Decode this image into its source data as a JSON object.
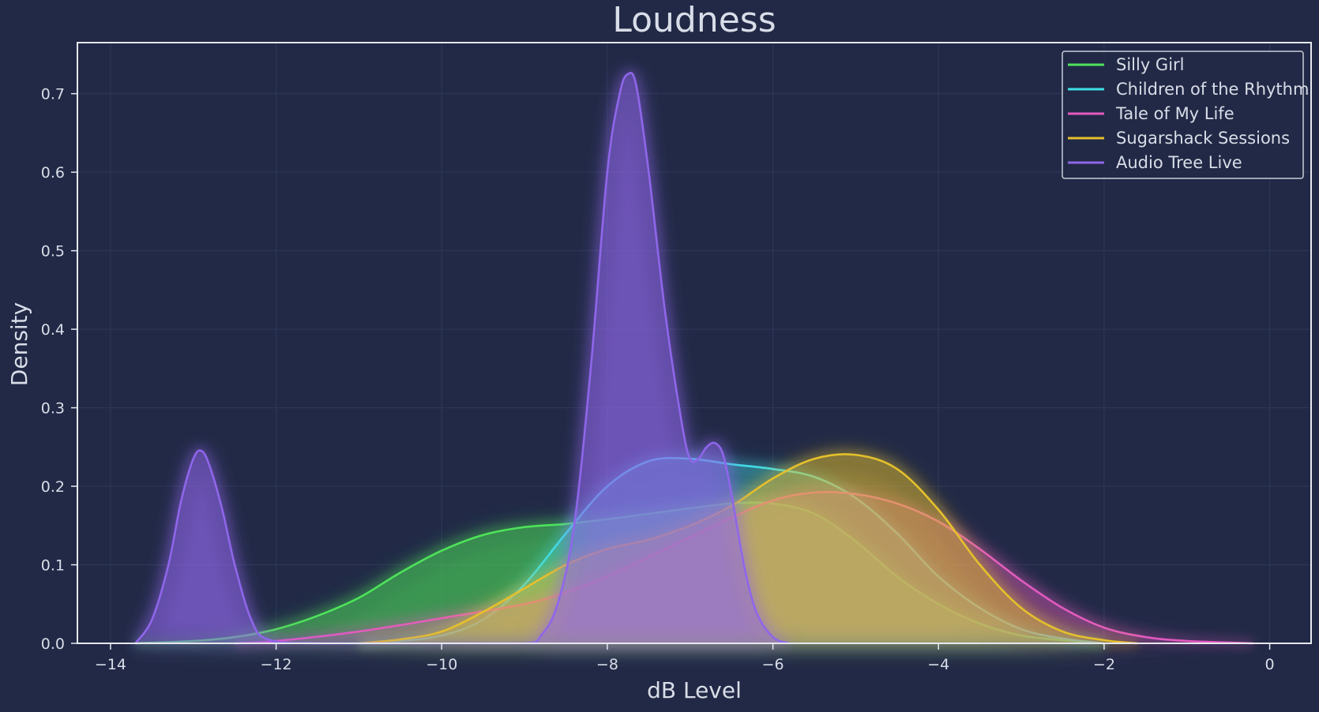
{
  "chart_data": {
    "type": "area",
    "title": "Loudness",
    "xlabel": "dB Level",
    "ylabel": "Density",
    "xlim": [
      -14.4,
      0.5
    ],
    "ylim": [
      0,
      0.765
    ],
    "xticks": [
      -14,
      -12,
      -10,
      -8,
      -6,
      -4,
      -2,
      0
    ],
    "xtick_labels": [
      "−14",
      "−12",
      "−10",
      "−8",
      "−6",
      "−4",
      "−2",
      "0"
    ],
    "yticks": [
      0.0,
      0.1,
      0.2,
      0.3,
      0.4,
      0.5,
      0.6,
      0.7
    ],
    "ytick_labels": [
      "0.0",
      "0.1",
      "0.2",
      "0.3",
      "0.4",
      "0.5",
      "0.6",
      "0.7"
    ],
    "grid": true,
    "legend_position": "top-right",
    "series": [
      {
        "name": "Silly Girl",
        "color": "#4ee35a",
        "fill_opacity": 0.45,
        "x": [
          -13.7,
          -13,
          -12.5,
          -12,
          -11.5,
          -11,
          -10.5,
          -10,
          -9.5,
          -9,
          -8.5,
          -8,
          -7.5,
          -7,
          -6.5,
          -6,
          -5.5,
          -5,
          -4.5,
          -4,
          -3.5,
          -3,
          -2.5,
          -2
        ],
        "y": [
          0.0,
          0.003,
          0.008,
          0.018,
          0.035,
          0.058,
          0.09,
          0.118,
          0.138,
          0.148,
          0.152,
          0.158,
          0.165,
          0.172,
          0.178,
          0.178,
          0.165,
          0.13,
          0.085,
          0.05,
          0.025,
          0.01,
          0.004,
          0.0
        ]
      },
      {
        "name": "Children of the Rhythm",
        "color": "#3fdde6",
        "fill_opacity": 0.3,
        "x": [
          -11,
          -10.5,
          -10,
          -9.5,
          -9,
          -8.5,
          -8,
          -7.5,
          -7,
          -6.5,
          -6,
          -5.5,
          -5,
          -4.5,
          -4,
          -3.5,
          -3,
          -2.5,
          -2
        ],
        "y": [
          0.0,
          0.003,
          0.01,
          0.03,
          0.075,
          0.14,
          0.2,
          0.232,
          0.235,
          0.228,
          0.222,
          0.212,
          0.185,
          0.14,
          0.085,
          0.045,
          0.018,
          0.006,
          0.0
        ]
      },
      {
        "name": "Tale of My Life",
        "color": "#e25ac0",
        "fill_opacity": 0.32,
        "x": [
          -12.5,
          -12,
          -11,
          -10,
          -9,
          -8.5,
          -8,
          -7.5,
          -7,
          -6.5,
          -6,
          -5.5,
          -5,
          -4.5,
          -4,
          -3.5,
          -3,
          -2.5,
          -2,
          -1.5,
          -1,
          -0.2
        ],
        "y": [
          0.0,
          0.003,
          0.015,
          0.032,
          0.05,
          0.065,
          0.085,
          0.11,
          0.135,
          0.16,
          0.182,
          0.192,
          0.19,
          0.178,
          0.155,
          0.12,
          0.08,
          0.045,
          0.02,
          0.008,
          0.003,
          0.0
        ]
      },
      {
        "name": "Sugarshack Sessions",
        "color": "#e5c02d",
        "fill_opacity": 0.42,
        "x": [
          -11,
          -10.5,
          -10,
          -9.5,
          -9,
          -8.5,
          -8,
          -7.5,
          -7,
          -6.5,
          -6,
          -5.5,
          -5,
          -4.5,
          -4,
          -3.5,
          -3,
          -2.5,
          -2,
          -1.6
        ],
        "y": [
          0.0,
          0.005,
          0.015,
          0.04,
          0.07,
          0.1,
          0.12,
          0.132,
          0.15,
          0.175,
          0.21,
          0.235,
          0.24,
          0.222,
          0.17,
          0.1,
          0.045,
          0.015,
          0.004,
          0.0
        ]
      },
      {
        "name": "Audio Tree Live",
        "color": "#8f66ea",
        "fill_opacity": 0.55,
        "x": [
          -13.7,
          -13.5,
          -13.3,
          -13.15,
          -13.0,
          -12.9,
          -12.8,
          -12.65,
          -12.5,
          -12.3,
          -12.1,
          -11.5,
          -10,
          -9,
          -8.8,
          -8.6,
          -8.4,
          -8.2,
          -8.0,
          -7.85,
          -7.75,
          -7.65,
          -7.5,
          -7.3,
          -7.1,
          -7.0,
          -6.9,
          -6.8,
          -6.7,
          -6.6,
          -6.5,
          -6.35,
          -6.2,
          -6.0,
          -5.8
        ],
        "y": [
          0.0,
          0.03,
          0.1,
          0.18,
          0.235,
          0.245,
          0.225,
          0.17,
          0.1,
          0.03,
          0.005,
          0.0,
          0.0,
          0.0,
          0.01,
          0.05,
          0.15,
          0.35,
          0.6,
          0.7,
          0.725,
          0.71,
          0.6,
          0.42,
          0.28,
          0.235,
          0.235,
          0.25,
          0.255,
          0.24,
          0.19,
          0.1,
          0.04,
          0.008,
          0.0
        ]
      }
    ]
  }
}
